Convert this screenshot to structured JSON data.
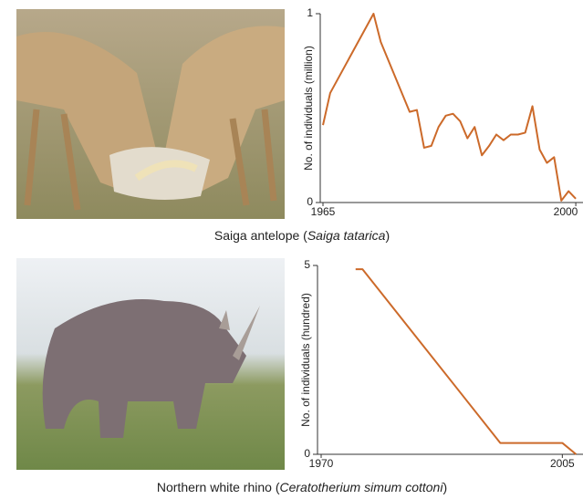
{
  "chart_data": [
    {
      "type": "line",
      "ylabel": "No. of individuals (million)",
      "caption": [
        "Saiga antelope (",
        "Saiga tatarica",
        ")"
      ],
      "x": [
        1965,
        1966,
        1972,
        1973,
        1977,
        1978,
        1979,
        1980,
        1981,
        1982,
        1983,
        1984,
        1985,
        1986,
        1987,
        1988,
        1989,
        1990,
        1991,
        1992,
        1993,
        1994,
        1995,
        1996,
        1997,
        1998,
        1999,
        2000
      ],
      "series": [
        {
          "color": "#cc6a2a",
          "values": [
            0.41,
            0.58,
            1.0,
            0.85,
            0.48,
            0.49,
            0.29,
            0.3,
            0.4,
            0.46,
            0.47,
            0.43,
            0.34,
            0.4,
            0.25,
            0.3,
            0.36,
            0.33,
            0.36,
            0.36,
            0.37,
            0.51,
            0.28,
            0.21,
            0.24,
            0.01,
            0.06,
            0.02
          ]
        }
      ],
      "xlim": [
        1965,
        2001
      ],
      "xticks": [
        1965,
        2000
      ],
      "ylim": [
        0,
        1
      ],
      "yticks": [
        0,
        1
      ]
    },
    {
      "type": "line",
      "ylabel": "No. of individuals (hundred)",
      "caption": [
        "Northern white rhino (",
        "Ceratotherium simum cottoni",
        ")"
      ],
      "x": [
        1975,
        1976,
        1996,
        2005,
        2007
      ],
      "series": [
        {
          "color": "#cc6a2a",
          "values": [
            4.9,
            4.9,
            0.3,
            0.3,
            0
          ]
        }
      ],
      "xlim": [
        1970,
        2008
      ],
      "xticks": [
        1970,
        2005
      ],
      "ylim": [
        0,
        5
      ],
      "yticks": [
        0,
        5
      ]
    }
  ]
}
